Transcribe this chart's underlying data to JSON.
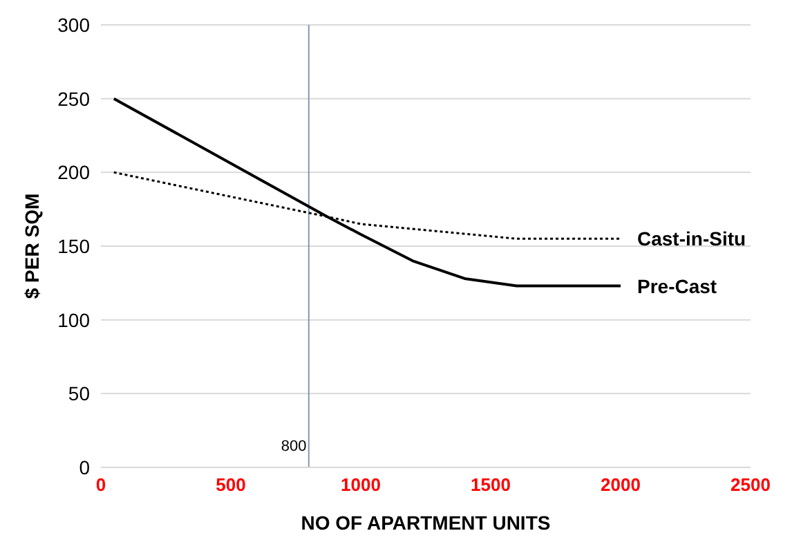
{
  "chart_data": {
    "type": "line",
    "xlabel": "NO OF APARTMENT UNITS",
    "ylabel": "$ PER SQM",
    "xlim": [
      0,
      2500
    ],
    "xticks": [
      0,
      500,
      1000,
      1500,
      2000,
      2500
    ],
    "ylim": [
      0,
      300
    ],
    "yticks": [
      0,
      50,
      100,
      150,
      200,
      250,
      300
    ],
    "grid": "y",
    "legend": false,
    "marker": "none",
    "series": [
      {
        "name": "Cast-in-Situ",
        "color": "#000000",
        "line_style": "dotted",
        "x": [
          50,
          870,
          1000,
          1300,
          1600,
          2000
        ],
        "values": [
          200,
          170,
          165,
          160,
          155,
          155
        ]
      },
      {
        "name": "Pre-Cast",
        "color": "#000000",
        "line_style": "solid",
        "x": [
          50,
          870,
          1000,
          1200,
          1400,
          1600,
          2000
        ],
        "values": [
          250,
          170,
          158,
          140,
          128,
          123,
          123
        ]
      }
    ],
    "ref_lines": [
      {
        "axis": "x",
        "value": 800,
        "label": "800",
        "color": "#8497b0"
      }
    ]
  }
}
